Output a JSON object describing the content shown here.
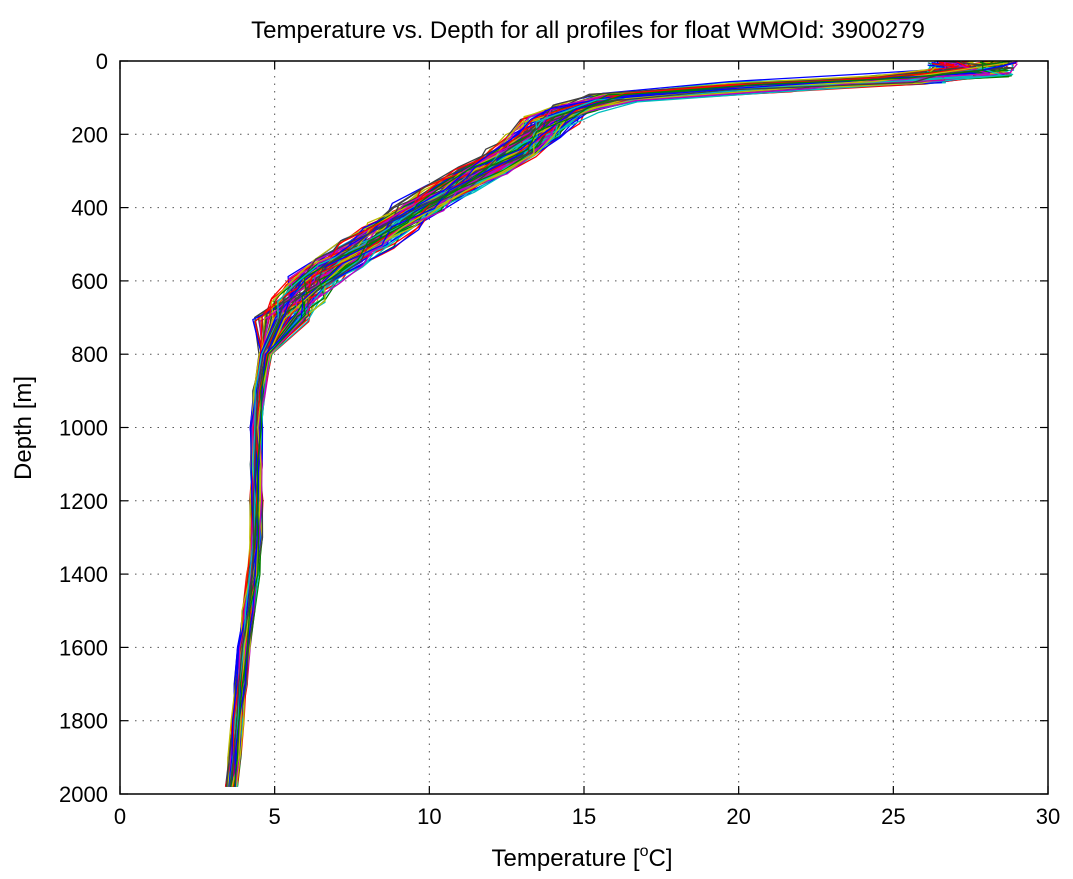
{
  "chart_data": {
    "type": "line",
    "title": "Temperature vs. Depth for all profiles for float WMOId: 3900279",
    "xlabel_main": "Temperature [",
    "xlabel_sup": "o",
    "xlabel_end": "C]",
    "ylabel": "Depth [m]",
    "xlim": [
      0,
      30
    ],
    "ylim": [
      0,
      2000
    ],
    "y_reversed": true,
    "grid": true,
    "x_ticks": [
      0,
      5,
      10,
      15,
      20,
      25,
      30
    ],
    "y_ticks": [
      0,
      200,
      400,
      600,
      800,
      1000,
      1200,
      1400,
      1600,
      1800,
      2000
    ],
    "x_tick_labels": [
      "0",
      "5",
      "10",
      "15",
      "20",
      "25",
      "30"
    ],
    "y_tick_labels": [
      "0",
      "200",
      "400",
      "600",
      "800",
      "1000",
      "1200",
      "1400",
      "1600",
      "1800",
      "2000"
    ],
    "line_colors": [
      "#0000ff",
      "#008000",
      "#ff0000",
      "#00bfbf",
      "#bf00bf",
      "#bfbf00",
      "#404040"
    ],
    "mean_profile": {
      "depth": [
        5,
        30,
        50,
        70,
        100,
        130,
        160,
        200,
        250,
        300,
        350,
        400,
        450,
        500,
        550,
        600,
        650,
        700,
        800,
        900,
        1000,
        1100,
        1200,
        1300,
        1400,
        1500,
        1600,
        1700,
        1800,
        1900,
        1980
      ],
      "temperature": [
        27.6,
        27.4,
        25.5,
        21.0,
        16.0,
        14.6,
        13.9,
        13.4,
        12.7,
        11.6,
        10.6,
        9.6,
        8.8,
        7.9,
        7.0,
        6.2,
        5.7,
        5.2,
        4.7,
        4.5,
        4.4,
        4.4,
        4.4,
        4.4,
        4.3,
        4.15,
        4.0,
        3.9,
        3.8,
        3.7,
        3.6
      ]
    },
    "profile_count": 100
  }
}
